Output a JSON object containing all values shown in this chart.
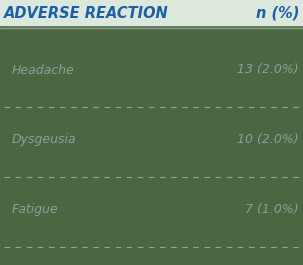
{
  "background_color": "#4a6741",
  "header_left": "ADVERSE REACTION",
  "header_right": "n (%)",
  "header_color": "#1a5fa8",
  "header_bg_color": "#dce8dc",
  "header_fontsize": 10.5,
  "header_line_color": "#8a9e8a",
  "rows": [
    {
      "left": "Headache",
      "right": "13 (2.0%)"
    },
    {
      "left": "Dysgeusia",
      "right": "10 (2.0%)"
    },
    {
      "left": "Fatigue",
      "right": "7 (1.0%)"
    }
  ],
  "row_color": "#8a9e9a",
  "row_fontsize": 9.0,
  "dash_color": "#8aaa8a",
  "figsize": [
    3.03,
    2.65
  ],
  "dpi": 100
}
